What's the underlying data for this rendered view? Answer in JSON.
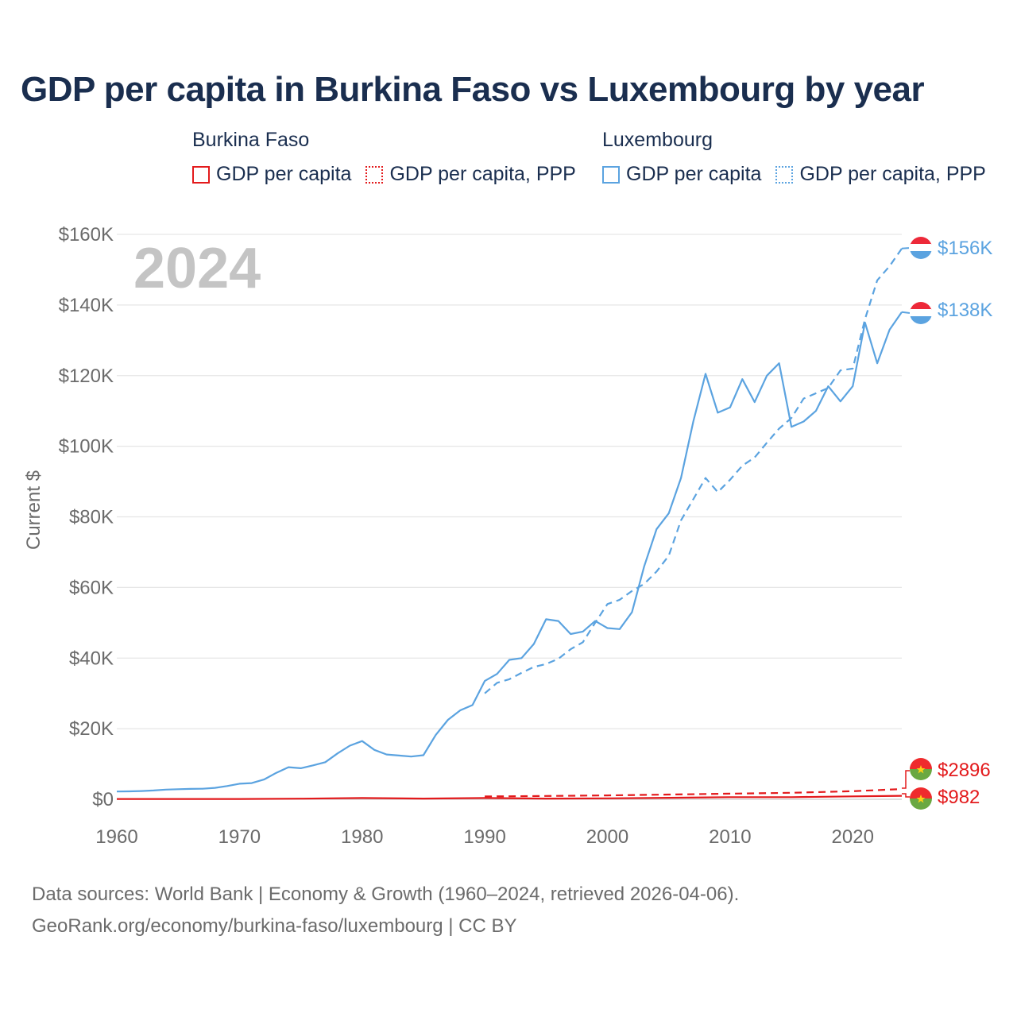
{
  "title": "GDP per capita in Burkina Faso vs Luxembourg by year",
  "legend": {
    "groups": [
      {
        "name": "Burkina Faso",
        "items": [
          "GDP per capita",
          "GDP per capita, PPP"
        ],
        "color": "#e31a1c"
      },
      {
        "name": "Luxembourg",
        "items": [
          "GDP per capita",
          "GDP per capita, PPP"
        ],
        "color": "#5ba3e0"
      }
    ]
  },
  "footer": {
    "line1": "Data sources: World Bank | Economy & Growth (1960–2024, retrieved 2026-04-06).",
    "line2": "GeoRank.org/economy/burkina-faso/luxembourg | CC BY"
  },
  "chart_data": {
    "type": "line",
    "title": "GDP per capita in Burkina Faso vs Luxembourg by year",
    "ylabel": "Current $",
    "xlabel": "",
    "year_watermark": "2024",
    "xlim": [
      1960,
      2024
    ],
    "ylim": [
      0,
      160000
    ],
    "x_ticks": [
      1960,
      1970,
      1980,
      1990,
      2000,
      2010,
      2020
    ],
    "y_ticks": [
      0,
      20000,
      40000,
      60000,
      80000,
      100000,
      120000,
      140000,
      160000
    ],
    "y_tick_labels": [
      "$0",
      "$20K",
      "$40K",
      "$60K",
      "$80K",
      "$100K",
      "$120K",
      "$140K",
      "$160K"
    ],
    "grid": true,
    "series": [
      {
        "name": "Luxembourg GDP per capita",
        "country": "Luxembourg",
        "style": "solid",
        "color": "#5ba3e0",
        "end_label": "$138K",
        "x": [
          1960,
          1961,
          1962,
          1963,
          1964,
          1965,
          1966,
          1967,
          1968,
          1969,
          1970,
          1971,
          1972,
          1973,
          1974,
          1975,
          1976,
          1977,
          1978,
          1979,
          1980,
          1981,
          1982,
          1983,
          1984,
          1985,
          1986,
          1987,
          1988,
          1989,
          1990,
          1991,
          1992,
          1993,
          1994,
          1995,
          1996,
          1997,
          1998,
          1999,
          2000,
          2001,
          2002,
          2003,
          2004,
          2005,
          2006,
          2007,
          2008,
          2009,
          2010,
          2011,
          2012,
          2013,
          2014,
          2015,
          2016,
          2017,
          2018,
          2019,
          2020,
          2021,
          2022,
          2023,
          2024
        ],
        "values": [
          2200,
          2250,
          2350,
          2500,
          2750,
          2850,
          2950,
          3000,
          3250,
          3750,
          4400,
          4600,
          5600,
          7500,
          9100,
          8800,
          9600,
          10500,
          13000,
          15200,
          16500,
          14000,
          12700,
          12400,
          12100,
          12500,
          18200,
          22500,
          25200,
          26700,
          33500,
          35500,
          39500,
          40000,
          44000,
          51000,
          50500,
          46800,
          47500,
          50500,
          48500,
          48200,
          53000,
          66000,
          76500,
          81000,
          91000,
          107000,
          120500,
          109500,
          111000,
          119000,
          112500,
          120000,
          123500,
          105500,
          107000,
          110000,
          117000,
          112700,
          117000,
          135000,
          123500,
          133000,
          138000
        ]
      },
      {
        "name": "Luxembourg GDP per capita, PPP",
        "country": "Luxembourg",
        "style": "dashed",
        "color": "#5ba3e0",
        "end_label": "$156K",
        "x": [
          1990,
          1991,
          1992,
          1993,
          1994,
          1995,
          1996,
          1997,
          1998,
          1999,
          2000,
          2001,
          2002,
          2003,
          2004,
          2005,
          2006,
          2007,
          2008,
          2009,
          2010,
          2011,
          2012,
          2013,
          2014,
          2015,
          2016,
          2017,
          2018,
          2019,
          2020,
          2021,
          2022,
          2023,
          2024
        ],
        "values": [
          30000,
          33000,
          34000,
          35800,
          37500,
          38300,
          39800,
          42500,
          44500,
          50000,
          55300,
          56500,
          59000,
          61000,
          64500,
          69000,
          79000,
          85000,
          91000,
          87000,
          90500,
          94500,
          96800,
          101000,
          105000,
          108000,
          113500,
          115000,
          116500,
          121500,
          122000,
          136000,
          147000,
          151000,
          156000
        ]
      },
      {
        "name": "Burkina Faso GDP per capita",
        "country": "Burkina Faso",
        "style": "solid",
        "color": "#e31a1c",
        "end_label": "$982",
        "x": [
          1960,
          1965,
          1970,
          1975,
          1980,
          1985,
          1990,
          1995,
          2000,
          2005,
          2010,
          2015,
          2020,
          2024
        ],
        "values": [
          80,
          90,
          100,
          180,
          350,
          200,
          370,
          200,
          260,
          430,
          600,
          600,
          830,
          982
        ]
      },
      {
        "name": "Burkina Faso GDP per capita, PPP",
        "country": "Burkina Faso",
        "style": "dashed",
        "color": "#e31a1c",
        "end_label": "$2896",
        "x": [
          1990,
          1995,
          2000,
          2005,
          2010,
          2015,
          2020,
          2024
        ],
        "values": [
          800,
          950,
          1100,
          1350,
          1600,
          1850,
          2300,
          2896
        ]
      }
    ]
  }
}
